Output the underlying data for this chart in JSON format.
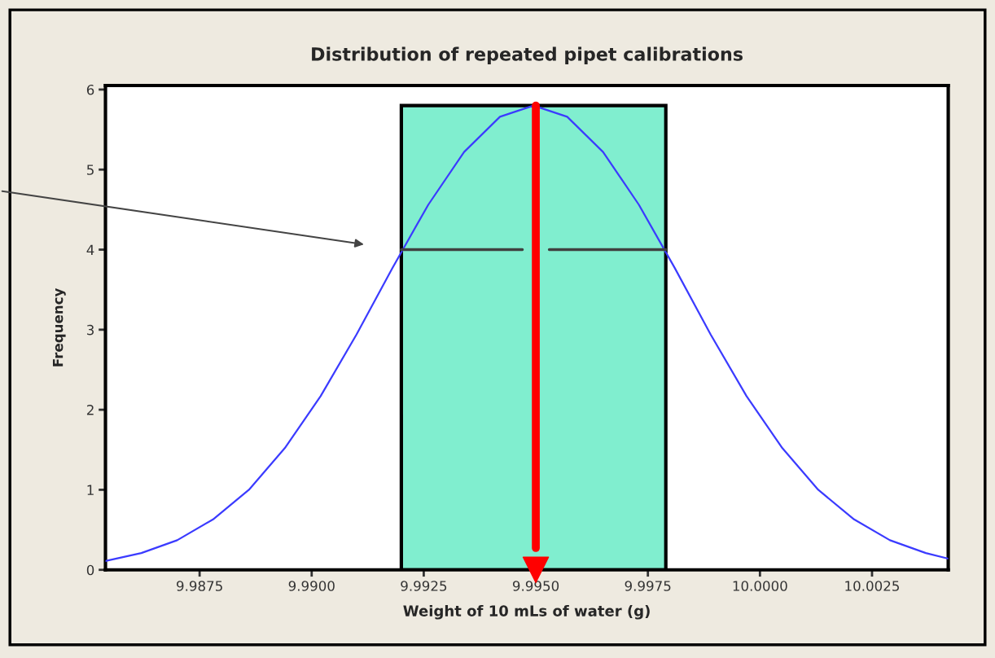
{
  "chart_data": {
    "type": "line",
    "title": "Distribution of repeated pipet calibrations",
    "xlabel": "Weight of 10 mLs of water (g)",
    "ylabel": "Frequency",
    "series": [
      {
        "color": "#3b3bff",
        "x": [
          9.9854,
          9.9862,
          9.987,
          9.9878,
          9.9886,
          9.9894,
          9.9902,
          9.991,
          9.9918,
          9.9926,
          9.9934,
          9.9942,
          9.99495,
          9.9957,
          9.9965,
          9.9973,
          9.9981,
          9.9989,
          9.9997,
          10.0005,
          10.0013,
          10.0021,
          10.0029,
          10.0037,
          10.0042
        ],
        "values": [
          0.11,
          0.21,
          0.37,
          0.63,
          1.0,
          1.52,
          2.17,
          2.94,
          3.77,
          4.56,
          5.22,
          5.66,
          5.8,
          5.66,
          5.22,
          4.56,
          3.77,
          2.94,
          2.17,
          1.52,
          1.0,
          0.63,
          0.37,
          0.21,
          0.14
        ]
      },
      {
        "color": "#404040",
        "x": [
          9.992,
          9.9947,
          9.995,
          9.9953,
          9.9979
        ],
        "values": [
          4,
          4,
          null,
          4,
          4
        ]
      }
    ],
    "bands": [
      {
        "axis": "x",
        "from": 9.992,
        "to": 9.9979,
        "color": "#80eecf"
      }
    ],
    "ref_lines": [
      {
        "axis": "x",
        "value": 9.995,
        "color": "#ff0000"
      }
    ],
    "xlim": [
      9.9854,
      10.0042
    ],
    "ylim": [
      0,
      6.05
    ],
    "xticks": [
      {
        "value": 9.9875,
        "label": "9.9875"
      },
      {
        "value": 9.99,
        "label": "9.9900"
      },
      {
        "value": 9.9925,
        "label": "9.9925"
      },
      {
        "value": 9.995,
        "label": "9.9950"
      },
      {
        "value": 9.9975,
        "label": "9.9975"
      },
      {
        "value": 10.0,
        "label": "10.0000"
      },
      {
        "value": 10.0025,
        "label": "10.0025"
      }
    ],
    "yticks": [
      0,
      1,
      2,
      3,
      4,
      5,
      6
    ],
    "grid": false,
    "legend": false,
    "marker": "none",
    "line_style": "solid"
  }
}
